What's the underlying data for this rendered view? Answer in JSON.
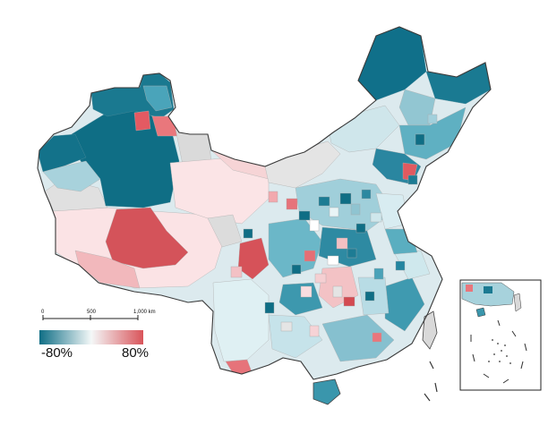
{
  "legend": {
    "min_label": "-80%",
    "max_label": "80%",
    "colors": {
      "negative": "#0f6e85",
      "neutral": "#f4f8f8",
      "positive": "#d9545a",
      "no_data": "#d9d9d9"
    }
  },
  "scale_bar": {
    "tick_0": "0",
    "tick_500": "500",
    "tick_1000": "1,000 km"
  }
}
